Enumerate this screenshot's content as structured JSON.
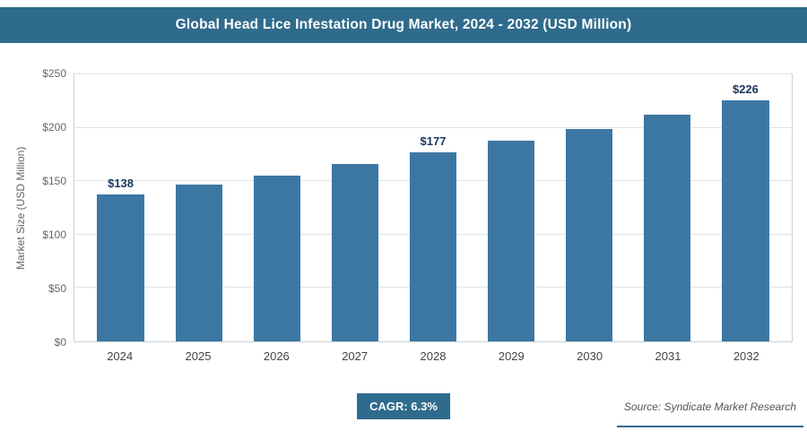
{
  "header": {
    "title": "Global Head Lice Infestation Drug Market, 2024 - 2032 (USD Million)"
  },
  "chart_data": {
    "type": "bar",
    "title": "Global Head Lice Infestation Drug Market, 2024 - 2032 (USD Million)",
    "categories": [
      "2024",
      "2025",
      "2026",
      "2027",
      "2028",
      "2029",
      "2030",
      "2031",
      "2032"
    ],
    "values": [
      138,
      147,
      155,
      166,
      177,
      188,
      199,
      212,
      226
    ],
    "annotated_indices": [
      0,
      4,
      8
    ],
    "annotated_labels": [
      "$138",
      "$177",
      "$226"
    ],
    "value_prefix": "$",
    "xlabel": "",
    "ylabel": "Market Size (USD Million)",
    "ylim": [
      0,
      250
    ],
    "yticks": [
      "$0",
      "$50",
      "$100",
      "$150",
      "$200",
      "$250"
    ],
    "grid": true,
    "legend_position": "none"
  },
  "footer": {
    "cagr_label": "CAGR: 6.3%",
    "source": "Source: Syndicate Market Research"
  },
  "colors": {
    "header_bg": "#2f6b8c",
    "bar": "#3c77a3",
    "badge_bg": "#2f6b8c",
    "accent_line": "#2f6b8c",
    "value_label": "#17375d"
  }
}
